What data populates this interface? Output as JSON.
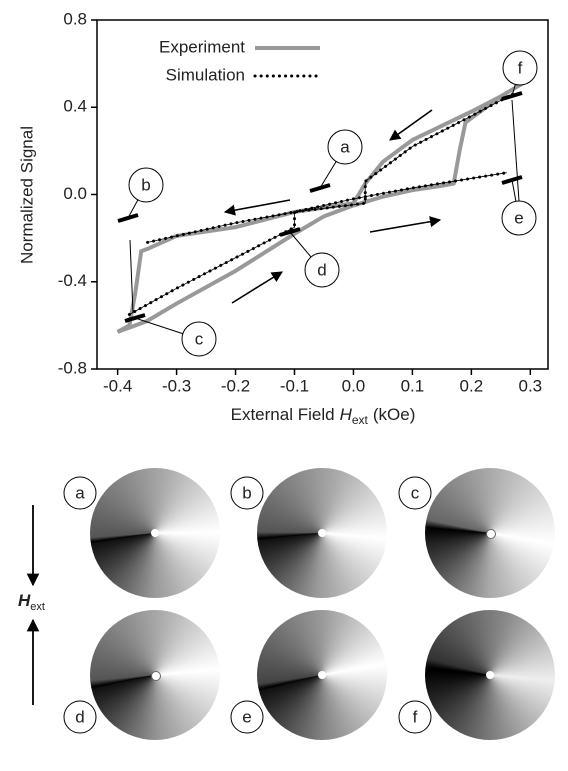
{
  "chart_data": {
    "type": "line",
    "ylabel": "Normalized Signal",
    "xlabel": {
      "text": "External Field",
      "symbol": "H",
      "subscript": "ext",
      "unit": "(kOe)"
    },
    "xlim": [
      -0.435,
      0.33
    ],
    "ylim": [
      -0.8,
      0.8
    ],
    "xticks": [
      -0.4,
      -0.3,
      -0.2,
      -0.1,
      {
        "value": 0,
        "label": "0.0"
      },
      0.1,
      0.2,
      0.3
    ],
    "yticks": [
      -0.8,
      -0.4,
      {
        "value": 0,
        "label": "0.0"
      },
      0.4,
      0.8
    ],
    "legend": "upper left",
    "series": [
      {
        "name": "Experiment",
        "color": "#999999",
        "x": [
          0.3,
          0.25,
          0.2,
          0.1,
          0.05,
          0.02,
          0.0,
          -0.05,
          -0.1,
          -0.2,
          -0.3,
          -0.35,
          -0.36,
          -0.37,
          -0.38,
          -0.4,
          -0.35,
          -0.3,
          -0.2,
          -0.1,
          -0.05,
          0.0,
          0.05,
          0.1,
          0.15,
          0.17,
          0.18,
          0.19,
          0.2,
          0.25,
          0.3
        ],
        "values": [
          0.53,
          0.45,
          0.38,
          0.25,
          0.15,
          0.05,
          -0.04,
          -0.06,
          -0.08,
          -0.15,
          -0.19,
          -0.25,
          -0.26,
          -0.45,
          -0.6,
          -0.63,
          -0.58,
          -0.5,
          -0.35,
          -0.18,
          -0.1,
          -0.05,
          -0.01,
          0.02,
          0.04,
          0.05,
          0.2,
          0.33,
          0.35,
          0.45,
          0.53
        ]
      },
      {
        "name": "Simulation",
        "color": "#000000",
        "x": [
          0.27,
          0.2,
          0.1,
          0.02,
          0.02,
          -0.1,
          -0.2,
          -0.35,
          null,
          -0.38,
          -0.3,
          -0.2,
          -0.1,
          -0.1,
          0.0,
          0.1,
          0.26
        ],
        "values": [
          0.46,
          0.36,
          0.22,
          0.06,
          -0.04,
          -0.08,
          -0.13,
          -0.22,
          null,
          -0.55,
          -0.43,
          -0.29,
          -0.15,
          -0.08,
          -0.02,
          0.03,
          0.1
        ]
      }
    ],
    "annotations": [
      "a",
      "b",
      "c",
      "d",
      "e",
      "f"
    ]
  },
  "panels": {
    "labels": [
      "a",
      "b",
      "c",
      "d",
      "e",
      "f"
    ],
    "field_label": {
      "symbol": "H",
      "subscript": "ext"
    }
  }
}
